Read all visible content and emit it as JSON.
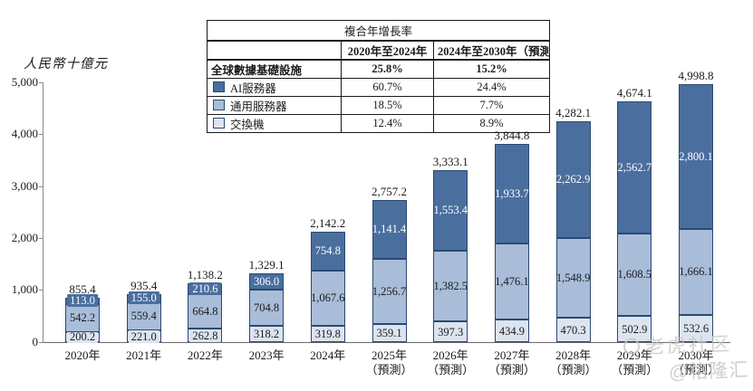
{
  "y_axis": {
    "unit_label": "人民幣十億元",
    "ticks": [
      "5,000",
      "4,000",
      "3,000",
      "2,000",
      "1,000",
      "0"
    ]
  },
  "cagr_table": {
    "title": "複合年增長率",
    "col_headers": [
      "2020年至2024年",
      "2024年至2030年（預測）"
    ],
    "rows": [
      {
        "label": "全球數據基礎設施",
        "v1": "25.8%",
        "v2": "15.2%",
        "swatch": null
      },
      {
        "label": "AI服務器",
        "v1": "60.7%",
        "v2": "24.4%",
        "swatch": "#4a6f9e"
      },
      {
        "label": "通用服務器",
        "v1": "18.5%",
        "v2": "7.7%",
        "swatch": "#a9bdd9"
      },
      {
        "label": "交換機",
        "v1": "12.4%",
        "v2": "8.9%",
        "swatch": "#dce4f0"
      }
    ]
  },
  "chart_data": {
    "type": "bar",
    "stacked": true,
    "ylabel": "人民幣十億元",
    "ylim": [
      0,
      5000
    ],
    "grid": false,
    "categories": [
      {
        "label": "2020年",
        "sub": ""
      },
      {
        "label": "2021年",
        "sub": ""
      },
      {
        "label": "2022年",
        "sub": ""
      },
      {
        "label": "2023年",
        "sub": ""
      },
      {
        "label": "2024年",
        "sub": ""
      },
      {
        "label": "2025年",
        "sub": "（預測）"
      },
      {
        "label": "2026年",
        "sub": "（預測）"
      },
      {
        "label": "2027年",
        "sub": "（預測）"
      },
      {
        "label": "2028年",
        "sub": "（預測）"
      },
      {
        "label": "2029年",
        "sub": "（預測）"
      },
      {
        "label": "2030年",
        "sub": "（預測）"
      }
    ],
    "series": [
      {
        "name": "交換機",
        "color": "#dce4f0",
        "label_color": "#1a1a1a",
        "values": [
          200.2,
          221.0,
          262.8,
          318.2,
          319.8,
          359.1,
          397.3,
          434.9,
          470.3,
          502.9,
          532.6
        ]
      },
      {
        "name": "通用服務器",
        "color": "#a9bdd9",
        "label_color": "#1a1a1a",
        "values": [
          542.2,
          559.4,
          664.8,
          704.8,
          1067.6,
          1256.7,
          1382.5,
          1476.1,
          1548.9,
          1608.5,
          1666.1
        ]
      },
      {
        "name": "AI服務器",
        "color": "#4a6f9e",
        "label_color": "#ffffff",
        "values": [
          113.0,
          155.0,
          210.6,
          306.0,
          754.8,
          1141.4,
          1553.4,
          1933.7,
          2262.9,
          2562.7,
          2800.1
        ]
      }
    ],
    "totals": [
      855.4,
      935.4,
      1138.2,
      1329.1,
      2142.2,
      2757.2,
      3333.1,
      3844.8,
      4282.1,
      4674.1,
      4998.8
    ]
  },
  "watermark": {
    "line1": "老虎社区",
    "line2": "@格隆汇"
  }
}
